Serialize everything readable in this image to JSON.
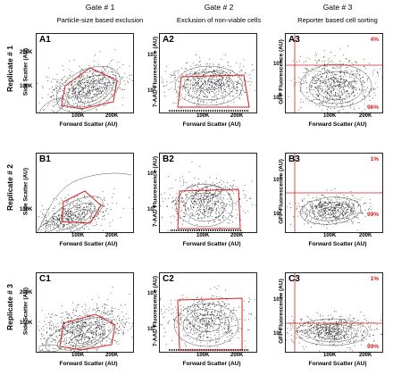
{
  "columns": [
    {
      "title": "Gate # 1",
      "subtitle": "Particle-size based exclusion"
    },
    {
      "title": "Gate # 2",
      "subtitle": "Exclusion of non-viable cells"
    },
    {
      "title": "Gate # 3",
      "subtitle": "Reporter based cell sorting"
    }
  ],
  "rows": [
    "Replicate # 1",
    "Replicate # 2",
    "Replicate # 3"
  ],
  "axes": {
    "side_scatter": "Side Scatter (AU)",
    "forward_scatter": "Forward Scatter (AU)",
    "aad_fluorescence": "7-AAD Fluorescence (AU)",
    "gfp_fluorescence": "GFP Fluorescence (AU)",
    "tick_100k": "100K",
    "tick_200k": "200K",
    "tick_10": "10",
    "exp_4": "4",
    "exp_2": "2"
  },
  "panels": {
    "A1": {
      "label": "A1"
    },
    "A2": {
      "label": "A2"
    },
    "A3": {
      "label": "A3",
      "top_pct": "4%",
      "bottom_pct": "96%"
    },
    "B1": {
      "label": "B1"
    },
    "B2": {
      "label": "B2"
    },
    "B3": {
      "label": "B3",
      "top_pct": "1%",
      "bottom_pct": "99%"
    },
    "C1": {
      "label": "C1"
    },
    "C2": {
      "label": "C2"
    },
    "C3": {
      "label": "C3",
      "top_pct": "1%",
      "bottom_pct": "99%"
    }
  },
  "colors": {
    "gate": "#d62020",
    "contour": "#555555",
    "dots": "#222222"
  }
}
